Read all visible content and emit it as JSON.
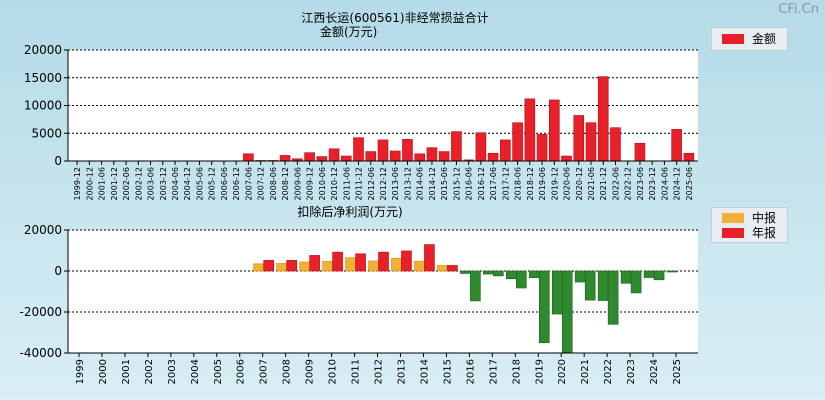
{
  "watermark": "CFi.Cn",
  "colors": {
    "red": "#e8202a",
    "red_dark": "#b10f17",
    "orange": "#f2b035",
    "orange_dark": "#d08c14",
    "green": "#2f8a2f",
    "green_dark": "#1e5f1e"
  },
  "chart_data": [
    {
      "type": "bar",
      "title": "江西长运(600561)非经常损益合计",
      "subtitle": "金额(万元)",
      "legend": [
        {
          "name": "金额",
          "color": "red"
        }
      ],
      "ylim": [
        0,
        20000
      ],
      "yticks": [
        0,
        5000,
        10000,
        15000,
        20000
      ],
      "categories": [
        "1999-12",
        "2000-12",
        "2001-06",
        "2001-12",
        "2002-06",
        "2002-12",
        "2003-06",
        "2003-12",
        "2004-06",
        "2004-12",
        "2005-06",
        "2005-12",
        "2006-06",
        "2006-12",
        "2007-06",
        "2007-12",
        "2008-06",
        "2008-12",
        "2009-06",
        "2009-12",
        "2010-06",
        "2010-12",
        "2011-06",
        "2011-12",
        "2012-06",
        "2012-12",
        "2013-06",
        "2013-12",
        "2014-06",
        "2014-12",
        "2015-06",
        "2015-12",
        "2016-06",
        "2016-12",
        "2017-06",
        "2017-12",
        "2018-06",
        "2018-12",
        "2019-06",
        "2019-12",
        "2020-06",
        "2020-12",
        "2021-06",
        "2021-12",
        "2022-06",
        "2022-12",
        "2023-06",
        "2023-12",
        "2024-06",
        "2024-12",
        "2025-06"
      ],
      "values": [
        0,
        0,
        0,
        0,
        0,
        0,
        0,
        0,
        0,
        0,
        0,
        0,
        0,
        0,
        1300,
        100,
        100,
        1000,
        400,
        1500,
        800,
        2200,
        900,
        4200,
        1700,
        3800,
        1800,
        3900,
        1300,
        2400,
        1700,
        5300,
        200,
        5100,
        1400,
        3800,
        6900,
        11200,
        4800,
        11000,
        900,
        8200,
        6900,
        15200,
        6000,
        0,
        3200,
        0,
        0,
        5700,
        1400
      ]
    },
    {
      "type": "bar",
      "title": "扣除后净利润(万元)",
      "legend": [
        {
          "name": "中报",
          "color": "orange"
        },
        {
          "name": "年报",
          "color": "red"
        }
      ],
      "ylim": [
        -40000,
        20000
      ],
      "yticks": [
        -40000,
        -20000,
        0,
        20000
      ],
      "categories": [
        "1999",
        "2000",
        "2001",
        "2002",
        "2003",
        "2004",
        "2005",
        "2006",
        "2007",
        "2008",
        "2009",
        "2010",
        "2011",
        "2012",
        "2013",
        "2014",
        "2015",
        "2016",
        "2017",
        "2018",
        "2019",
        "2020",
        "2021",
        "2022",
        "2023",
        "2024",
        "2025"
      ],
      "series": [
        {
          "name": "中报",
          "values": [
            0,
            0,
            0,
            0,
            0,
            0,
            0,
            0,
            3500,
            3700,
            4400,
            4700,
            6500,
            4900,
            6200,
            4800,
            2700,
            -1200,
            -1500,
            -3800,
            -3300,
            -21000,
            -5400,
            -14400,
            -6000,
            -3200,
            -500
          ]
        },
        {
          "name": "年报",
          "values": [
            0,
            0,
            0,
            0,
            0,
            0,
            0,
            0,
            5200,
            5200,
            7600,
            9200,
            8400,
            9200,
            9800,
            12900,
            2700,
            -14600,
            -2400,
            -8300,
            -35000,
            -39800,
            -14200,
            -26000,
            -10700,
            -4300,
            null
          ]
        }
      ]
    }
  ]
}
